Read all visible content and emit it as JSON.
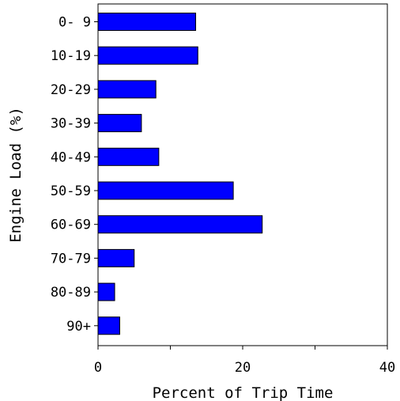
{
  "chart_data": {
    "type": "bar",
    "orientation": "horizontal",
    "categories": [
      "0- 9",
      "10-19",
      "20-29",
      "30-39",
      "40-49",
      "50-59",
      "60-69",
      "70-79",
      "80-89",
      "90+"
    ],
    "values": [
      13.5,
      13.8,
      8.0,
      6.0,
      8.4,
      18.7,
      22.7,
      5.0,
      2.3,
      3.0
    ],
    "xlabel": "Percent of Trip Time",
    "ylabel": "Engine Load (%)",
    "xlim": [
      0,
      40
    ],
    "xticks": [
      0,
      20,
      40
    ],
    "xticks_minor": [
      10,
      30
    ],
    "bar_color": "#0000ff",
    "grid": false
  }
}
